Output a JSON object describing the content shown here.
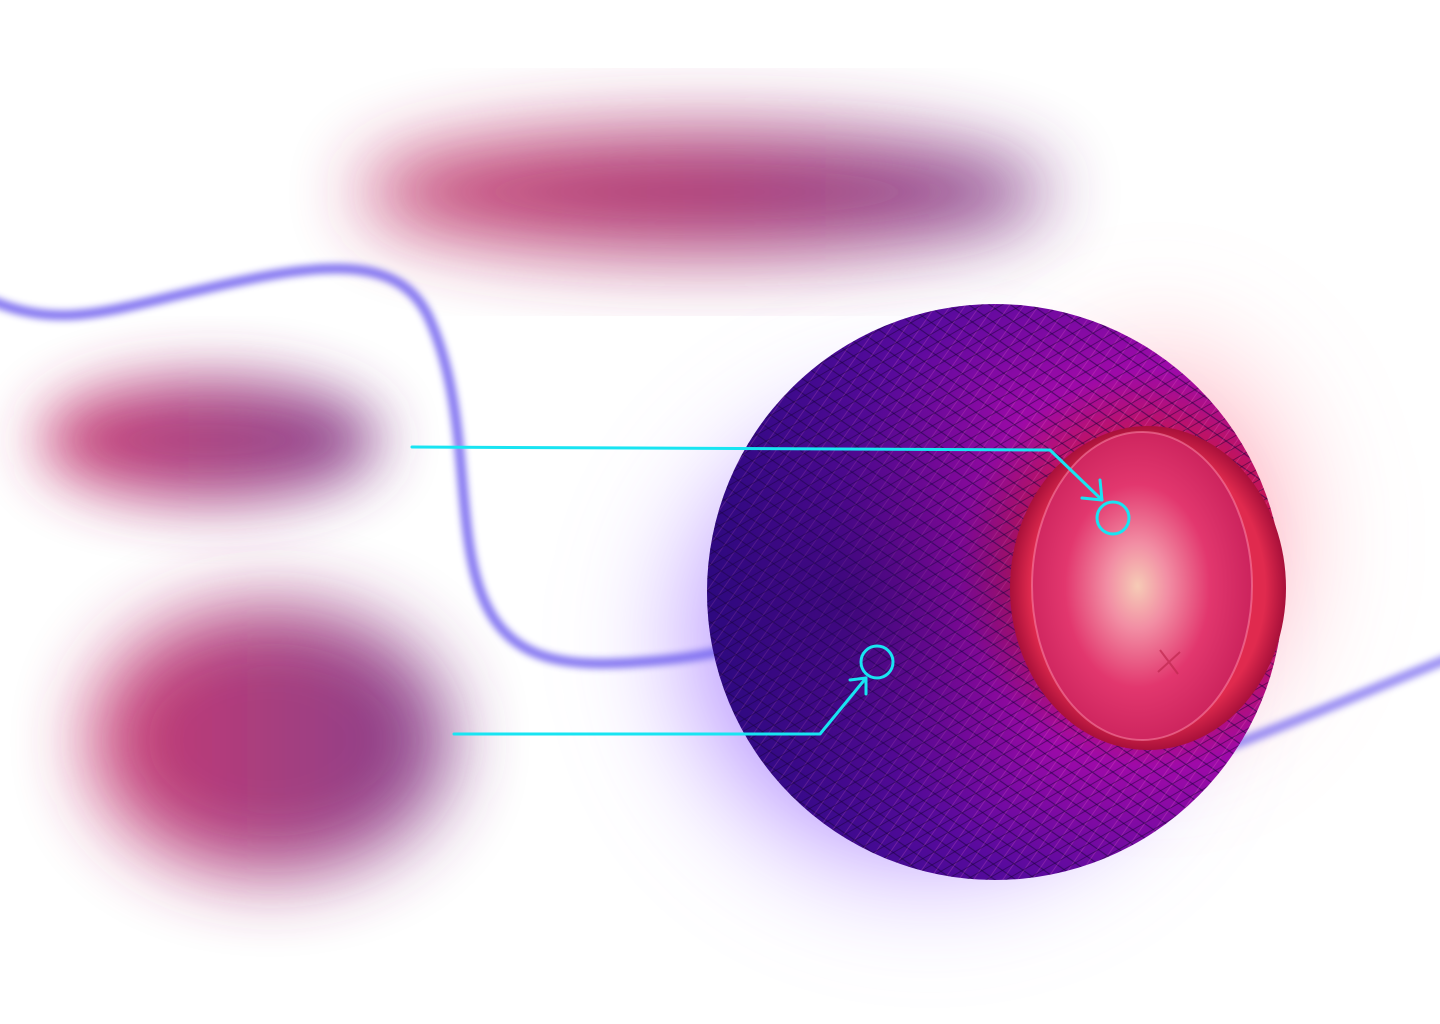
{
  "scene": {
    "description_label": "",
    "colors": {
      "background": "#ffffff",
      "blob_magenta": "#b0306a",
      "blob_plum": "#7e3a86",
      "cable": "#7a6cf0",
      "glow_blue": "#6f5cff",
      "glow_pink": "#ff6f8a",
      "mesh_dark": "#2b0a86",
      "mesh_mid": "#8d0aa6",
      "mesh_red": "#c8223e",
      "top_center": "#f4c2b2",
      "top_ring": "#d8285e",
      "callout": "#18e4f2"
    },
    "callouts": [
      {
        "name": "touch-surface-callout",
        "icon": "circle-target-icon"
      },
      {
        "name": "mesh-fabric-callout",
        "icon": "circle-target-icon"
      }
    ],
    "speaker": {
      "icon": "plus-icon"
    }
  }
}
